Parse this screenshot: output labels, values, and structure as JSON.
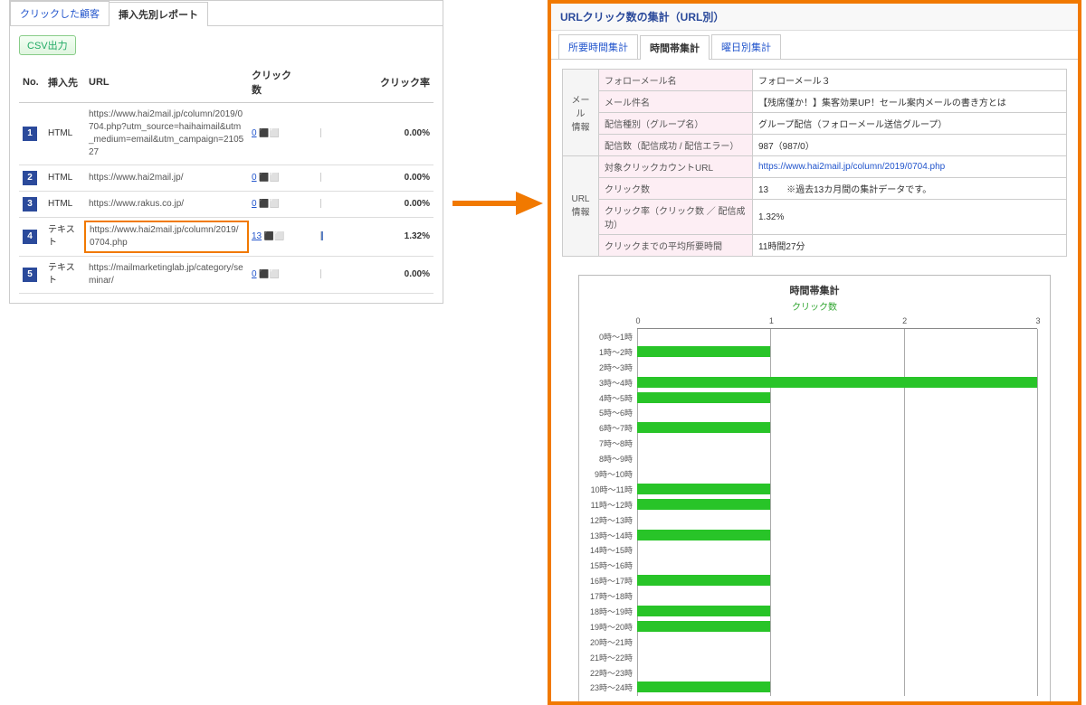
{
  "left": {
    "tabs": [
      {
        "label": "クリックした顧客",
        "active": false
      },
      {
        "label": "挿入先別レポート",
        "active": true
      }
    ],
    "csv_label": "CSV出力",
    "columns": [
      "No.",
      "挿入先",
      "URL",
      "クリック数",
      "クリック率"
    ],
    "rows": [
      {
        "no": "1",
        "type": "HTML",
        "url": "https://www.hai2mail.jp/column/2019/0704.php?utm_source=haihaimail&utm_medium=email&utm_campaign=210527",
        "clicks": "0",
        "rate": "0.00%",
        "bar_pct": 0,
        "highlight": false
      },
      {
        "no": "2",
        "type": "HTML",
        "url": "https://www.hai2mail.jp/",
        "clicks": "0",
        "rate": "0.00%",
        "bar_pct": 0,
        "highlight": false
      },
      {
        "no": "3",
        "type": "HTML",
        "url": "https://www.rakus.co.jp/",
        "clicks": "0",
        "rate": "0.00%",
        "bar_pct": 0,
        "highlight": false
      },
      {
        "no": "4",
        "type": "テキスト",
        "url": "https://www.hai2mail.jp/column/2019/0704.php",
        "clicks": "13",
        "rate": "1.32%",
        "bar_pct": 2,
        "highlight": true
      },
      {
        "no": "5",
        "type": "テキスト",
        "url": "https://mailmarketinglab.jp/category/seminar/",
        "clicks": "0",
        "rate": "0.00%",
        "bar_pct": 0,
        "highlight": false
      }
    ],
    "highlight_color": "#f17900",
    "badge_bg": "#2b4a9b"
  },
  "right": {
    "border_color": "#f17900",
    "header": "URLクリック数の集計（URL別）",
    "tabs": [
      {
        "label": "所要時間集計",
        "active": false
      },
      {
        "label": "時間帯集計",
        "active": true
      },
      {
        "label": "曜日別集計",
        "active": false
      }
    ],
    "info_groups": [
      {
        "side": "メール\n情報",
        "rows": [
          {
            "label": "フォローメール名",
            "value": "フォローメール３"
          },
          {
            "label": "メール件名",
            "value": "【残席僅か！】集客効果UP！セール案内メールの書き方とは"
          },
          {
            "label": "配信種別（グループ名）",
            "value": "グループ配信（フォローメール送信グループ）"
          },
          {
            "label": "配信数（配信成功 / 配信エラー）",
            "value": "987（987/0）"
          }
        ]
      },
      {
        "side": "URL\n情報",
        "rows": [
          {
            "label": "対象クリックカウントURL",
            "value": "https://www.hai2mail.jp/column/2019/0704.php",
            "is_link": true
          },
          {
            "label": "クリック数",
            "value": "13　　※過去13カ月間の集計データです。"
          },
          {
            "label": "クリック率（クリック数 ／ 配信成功）",
            "value": "1.32%"
          },
          {
            "label": "クリックまでの平均所要時間",
            "value": "11時間27分"
          }
        ]
      }
    ],
    "chart": {
      "type": "horizontal-bar",
      "title": "時間帯集計",
      "subtitle": "クリック数",
      "bar_color": "#28c428",
      "grid_color": "#aaaaaa",
      "bg_color": "#ffffff",
      "x_ticks": [
        0,
        1,
        2,
        3
      ],
      "xlim": [
        0,
        3
      ],
      "categories": [
        "0時～1時",
        "1時～2時",
        "2時～3時",
        "3時～4時",
        "4時～5時",
        "5時～6時",
        "6時～7時",
        "7時～8時",
        "8時～9時",
        "9時～10時",
        "10時～11時",
        "11時～12時",
        "12時～13時",
        "13時～14時",
        "14時～15時",
        "15時～16時",
        "16時～17時",
        "17時～18時",
        "18時～19時",
        "19時～20時",
        "20時～21時",
        "21時～22時",
        "22時～23時",
        "23時～24時"
      ],
      "values": [
        0,
        1,
        0,
        3,
        1,
        0,
        1,
        0,
        0,
        0,
        1,
        1,
        0,
        1,
        0,
        0,
        1,
        0,
        1,
        1,
        0,
        0,
        0,
        1
      ]
    }
  },
  "arrow_color": "#f17900"
}
